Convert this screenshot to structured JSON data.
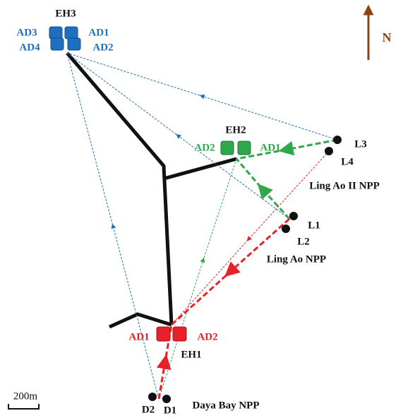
{
  "halls": [
    {
      "label": "EH3",
      "detectors": [
        "AD3",
        "AD1",
        "AD4",
        "AD2"
      ]
    },
    {
      "label": "EH2",
      "detectors": [
        "AD2",
        "AD1"
      ]
    },
    {
      "label": "EH1",
      "detectors": [
        "AD1",
        "AD2"
      ]
    }
  ],
  "reactors": [
    {
      "label": "Ling Ao II NPP",
      "cores": [
        "L3",
        "L4"
      ]
    },
    {
      "label": "Ling Ao NPP",
      "cores": [
        "L1",
        "L2"
      ]
    },
    {
      "label": "Daya Bay NPP",
      "cores": [
        "D2",
        "D1"
      ]
    }
  ],
  "compass": "N",
  "scale_bar": "200m"
}
